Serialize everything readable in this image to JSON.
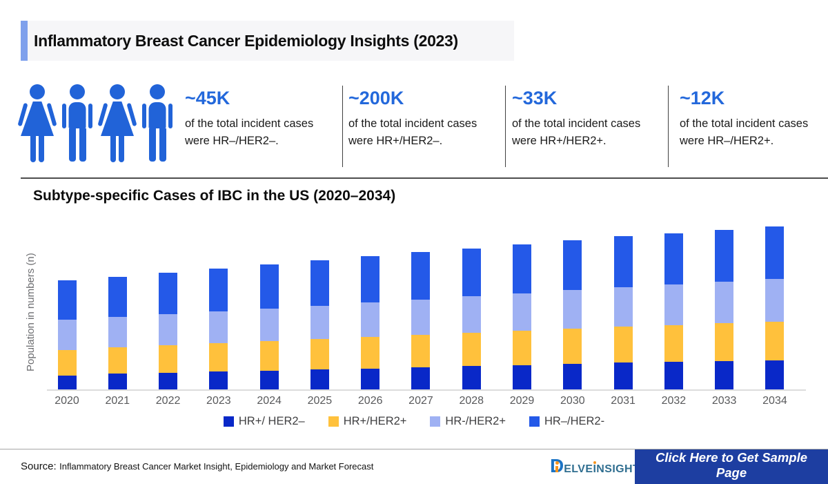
{
  "header": {
    "title": "Inflammatory Breast Cancer Epidemiology Insights (2023)"
  },
  "icons": {
    "people": [
      "woman",
      "man",
      "woman",
      "man"
    ],
    "color": "#2163d8"
  },
  "stats": [
    {
      "value": "~45K",
      "description": "of the total incident cases were HR–/HER2–."
    },
    {
      "value": "~200K",
      "description": "of the total incident cases were HR+/HER2–."
    },
    {
      "value": "~33K",
      "description": "of the total incident cases were HR+/HER2+."
    },
    {
      "value": "~12K",
      "description": "of the total incident cases were HR–/HER2+."
    }
  ],
  "chart_data": {
    "type": "bar",
    "stacked": true,
    "title": "Subtype-specific Cases of IBC in the US (2020–2034)",
    "xlabel": "",
    "ylabel": "Population in numbers (n)",
    "grid": false,
    "legend_position": "bottom",
    "value_units": "relative units (no numeric axis ticks shown; values estimated from bar heights)",
    "categories": [
      "2020",
      "2021",
      "2022",
      "2023",
      "2024",
      "2025",
      "2026",
      "2027",
      "2028",
      "2029",
      "2030",
      "2031",
      "2032",
      "2033",
      "2034"
    ],
    "series": [
      {
        "name": "HR+/ HER2–",
        "color": "#0928c8",
        "values": [
          21,
          24,
          25,
          27,
          28,
          30,
          31,
          33,
          35,
          36,
          38,
          40,
          41,
          42,
          43
        ]
      },
      {
        "name": "HR+/HER2+",
        "color": "#ffc13c",
        "values": [
          37,
          38,
          40,
          41,
          43,
          44,
          46,
          47,
          48,
          50,
          51,
          52,
          53,
          55,
          56
        ]
      },
      {
        "name": "HR-/HER2+",
        "color": "#9fb1f3",
        "values": [
          44,
          44,
          45,
          46,
          47,
          48,
          50,
          51,
          53,
          54,
          56,
          57,
          59,
          60,
          62
        ]
      },
      {
        "name": "HR–/HER2-",
        "color": "#2459e8",
        "values": [
          57,
          58,
          60,
          62,
          64,
          66,
          67,
          69,
          69,
          71,
          72,
          74,
          74,
          75,
          76
        ]
      }
    ],
    "totals": [
      159,
      164,
      170,
      176,
      182,
      188,
      194,
      200,
      205,
      211,
      217,
      223,
      227,
      232,
      237
    ]
  },
  "footer": {
    "source_label": "Source:",
    "source_text": "Inflammatory Breast Cancer Market Insight, Epidemiology and Market Forecast",
    "logo": {
      "d_letter": "D",
      "part1": "ELVE",
      "i_letter": "I",
      "part2": "NSIGHT"
    },
    "cta_label": "Click Here to Get Sample Page"
  }
}
